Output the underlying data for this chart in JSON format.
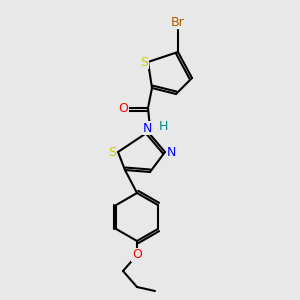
{
  "bg_color": "#e8e8e8",
  "bond_color": "#000000",
  "atom_colors": {
    "Br": "#b35a00",
    "S": "#cccc00",
    "O_carbonyl": "#ff0000",
    "O_ether": "#ff0000",
    "N": "#0000ff",
    "H": "#008888",
    "C": "#000000"
  },
  "font_size": 9,
  "line_width": 1.5
}
